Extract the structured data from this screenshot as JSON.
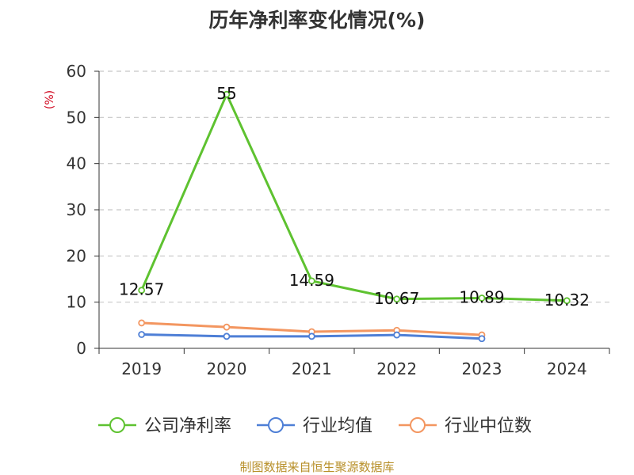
{
  "chart_data": {
    "type": "line",
    "title": "历年净利率变化情况(%)",
    "ylabel": "(%)",
    "categories": [
      "2019",
      "2020",
      "2021",
      "2022",
      "2023",
      "2024"
    ],
    "ylim": [
      0,
      60
    ],
    "yticks": [
      0,
      10,
      20,
      30,
      40,
      50,
      60
    ],
    "grid": true,
    "legend_position": "bottom",
    "series": [
      {
        "name": "公司净利率",
        "color": "#5ec230",
        "values": [
          12.57,
          55,
          14.59,
          10.67,
          10.89,
          10.32
        ],
        "labels": [
          "12.57",
          "55",
          "14.59",
          "10.67",
          "10.89",
          "10.32"
        ]
      },
      {
        "name": "行业均值",
        "color": "#4e7fd6",
        "values": [
          3.0,
          2.6,
          2.6,
          2.9,
          2.1,
          null
        ]
      },
      {
        "name": "行业中位数",
        "color": "#f39660",
        "values": [
          5.5,
          4.6,
          3.6,
          3.9,
          2.9,
          null
        ]
      }
    ]
  },
  "source": "制图数据来自恒生聚源数据库"
}
